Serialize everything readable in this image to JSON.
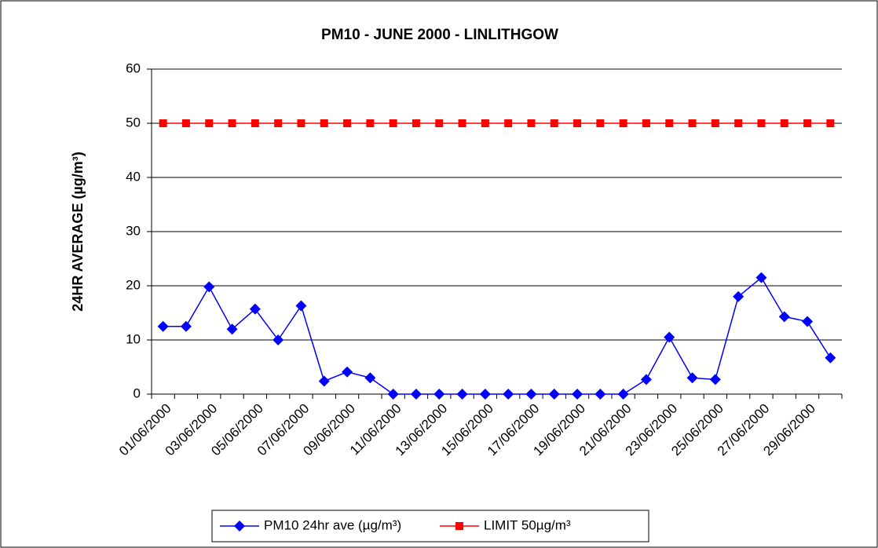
{
  "chart_data": {
    "type": "line",
    "title": "PM10 - JUNE 2000 - LINLITHGOW",
    "y_label": "24HR AVERAGE (µg/m³)",
    "categories": [
      "01/06/2000",
      null,
      "03/06/2000",
      null,
      "05/06/2000",
      null,
      "07/06/2000",
      null,
      "09/06/2000",
      null,
      "11/06/2000",
      null,
      "13/06/2000",
      null,
      "15/06/2000",
      null,
      "17/06/2000",
      null,
      "19/06/2000",
      null,
      "21/06/2000",
      null,
      "23/06/2000",
      null,
      "25/06/2000",
      null,
      "27/06/2000",
      null,
      "29/06/2000",
      null
    ],
    "series": [
      {
        "name": "PM10 24hr ave (µg/m³)",
        "color": "#0000ff",
        "marker": "diamond",
        "values": [
          12.5,
          12.5,
          19.8,
          12,
          15.7,
          10,
          16.3,
          2.4,
          4.1,
          3,
          0,
          0,
          0,
          0,
          0,
          0,
          0,
          0,
          0,
          0,
          0,
          2.7,
          10.5,
          3,
          2.7,
          18,
          21.5,
          14.3,
          13.4,
          6.7
        ]
      },
      {
        "name": "LIMIT 50µg/m³",
        "color": "#ff0000",
        "marker": "square",
        "values": [
          50,
          50,
          50,
          50,
          50,
          50,
          50,
          50,
          50,
          50,
          50,
          50,
          50,
          50,
          50,
          50,
          50,
          50,
          50,
          50,
          50,
          50,
          50,
          50,
          50,
          50,
          50,
          50,
          50,
          50
        ]
      }
    ],
    "ylim": [
      0,
      60
    ],
    "yticks": [
      0,
      10,
      20,
      30,
      40,
      50,
      60
    ],
    "grid": true
  }
}
